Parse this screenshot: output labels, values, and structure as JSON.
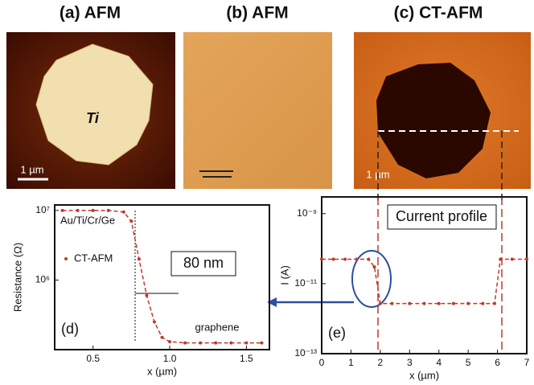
{
  "panels": {
    "a": {
      "title": "(a) AFM",
      "label": "Ti",
      "scale": "1 µm"
    },
    "b": {
      "title": "(b) AFM"
    },
    "c": {
      "title": "(c) CT-AFM",
      "scale": "1 µm"
    }
  },
  "plot_d": {
    "type": "line",
    "panel": "(d)",
    "ylabel": "Resistance (Ω)",
    "xlabel": "x (µm)",
    "legend": "CT-AFM",
    "annotation_high": "Au/Ti/Cr/Ge",
    "annotation_low": "graphene",
    "scalebar": "80 nm",
    "log_y": true,
    "color": "#c0392b",
    "x": [
      0.3,
      0.4,
      0.5,
      0.6,
      0.7,
      0.75,
      0.8,
      0.85,
      0.9,
      0.95,
      1.0,
      1.1,
      1.2,
      1.3,
      1.4,
      1.5,
      1.6
    ],
    "values": [
      10000000,
      10000000,
      10000000,
      10000000,
      9500000,
      7000000,
      2000000,
      600000,
      250000,
      150000,
      130000,
      125000,
      125000,
      125000,
      125000,
      125000,
      125000
    ],
    "xlim": [
      0.25,
      1.65
    ],
    "ylim": [
      100000,
      12000000
    ],
    "xticks": [
      0.5,
      {
        "value": 1.0,
        "label": "1.0"
      },
      1.5
    ],
    "yticks": [
      {
        "value": 10000000,
        "label": "10⁷"
      },
      {
        "value": 1000000,
        "label": "10⁶"
      }
    ]
  },
  "plot_e": {
    "type": "line",
    "panel": "(e)",
    "ylabel": "I (A)",
    "xlabel": "x (µm)",
    "annotation": "Current profile",
    "log_y": true,
    "color": "#c0392b",
    "x": [
      0,
      0.4,
      0.8,
      1.2,
      1.6,
      1.8,
      2.0,
      2.4,
      3,
      3.5,
      4,
      4.5,
      5,
      5.5,
      5.9,
      6.1,
      6.5,
      7
    ],
    "values": [
      5e-11,
      5e-11,
      5e-11,
      5e-11,
      5e-11,
      3e-11,
      2.7e-12,
      2.7e-12,
      2.7e-12,
      2.7e-12,
      2.7e-12,
      2.7e-12,
      2.7e-12,
      2.7e-12,
      2.7e-12,
      5e-11,
      5e-11,
      5e-11
    ],
    "xlim": [
      0,
      7
    ],
    "ylim": [
      1e-13,
      3e-09
    ],
    "xticks": [
      0,
      1,
      2,
      3,
      4,
      5,
      6,
      7
    ],
    "yticks": [
      {
        "value": 1e-09,
        "label": "10⁻⁹"
      },
      {
        "value": 1e-11,
        "label": "10⁻¹¹"
      },
      {
        "value": 1e-13,
        "label": "10⁻¹³"
      }
    ]
  }
}
